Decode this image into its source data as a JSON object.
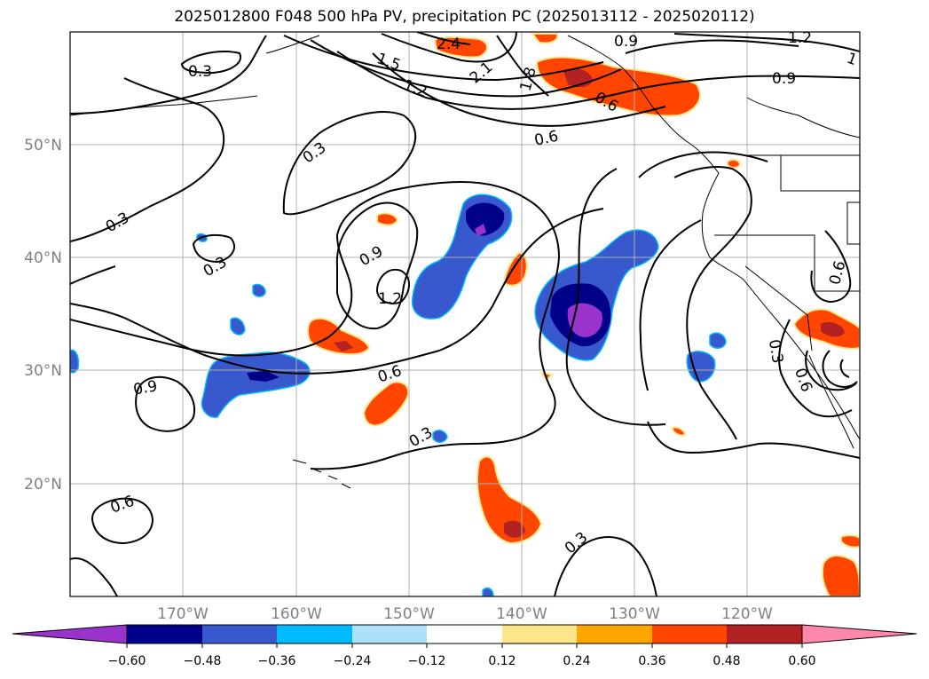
{
  "title": "2025012800 F048 500 hPa PV, precipitation PC (2025013112 - 2025020112)",
  "map": {
    "lon_ticks": [
      "170°W",
      "160°W",
      "150°W",
      "140°W",
      "130°W",
      "120°W"
    ],
    "lat_ticks": [
      "50°N",
      "40°N",
      "30°N",
      "20°N"
    ],
    "tick_color": "#808080",
    "land_color": "#ffffff",
    "coast_color": "#000000"
  },
  "contours": {
    "variable": "500 hPa PV",
    "color": "#000000",
    "labels": [
      "0.3",
      "0.3",
      "0.3",
      "0.3",
      "0.3",
      "0.3",
      "0.3",
      "0.6",
      "0.6",
      "0.6",
      "0.6",
      "0.6",
      "0.9",
      "0.9",
      "0.9",
      "0.9",
      "0.6",
      "1.2",
      "1.2",
      "1.2",
      "1.5",
      "1.8",
      "2.1",
      "2.4",
      "1"
    ]
  },
  "shading": {
    "variable": "precipitation PC",
    "positive_colors": [
      "#fde68a",
      "#ffa500",
      "#ff4500",
      "#b22222",
      "#ff85a5"
    ],
    "negative_colors": [
      "#add8f2",
      "#00bfff",
      "#3a5fcd",
      "#00008b",
      "#9932cc"
    ]
  },
  "colorbar": {
    "ticks": [
      "−0.60",
      "−0.48",
      "−0.36",
      "−0.24",
      "−0.12",
      "0.12",
      "0.24",
      "0.36",
      "0.48",
      "0.60"
    ],
    "colors": [
      "#9a33cc",
      "#000088",
      "#3858cd",
      "#00bbff",
      "#ade1f9",
      "#ffffff",
      "#fde68a",
      "#ffa500",
      "#ff4500",
      "#b22222",
      "#ff87aa"
    ]
  }
}
